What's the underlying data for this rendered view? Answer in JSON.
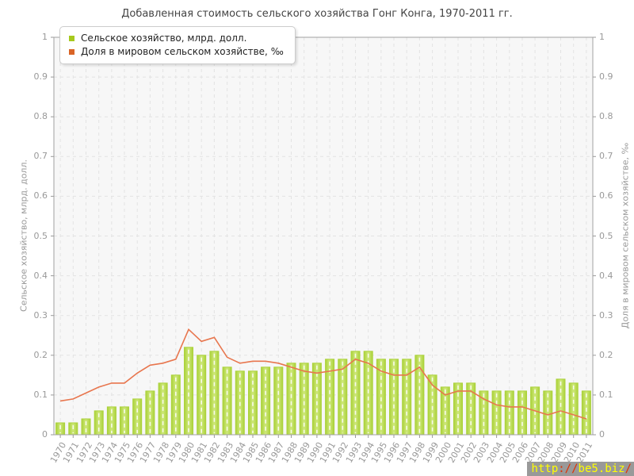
{
  "title": "Добавленная стоимость сельского хозяйства Гонг Конга, 1970-2011 гг.",
  "legend": {
    "items": [
      {
        "label": "Сельское хозяйство, млрд. долл.",
        "color": "#a6c91d",
        "marker": "square-icon"
      },
      {
        "label": "Доля в мировом сельском хозяйстве, ‰",
        "color": "#d96426",
        "marker": "square-icon"
      }
    ]
  },
  "axes": {
    "y_left_title": "Сельское хозяйство, млрд. долл.",
    "y_right_title": "Доля в мировом сельском хозяйстве, ‰",
    "y_tick_labels": [
      "0",
      "0.1",
      "0.2",
      "0.3",
      "0.4",
      "0.5",
      "0.6",
      "0.7",
      "0.8",
      "0.9",
      "1"
    ]
  },
  "watermark": {
    "p1": "http",
    "p2": "://",
    "p3": "be5.biz",
    "p4": "/"
  },
  "colors": {
    "bar_edge": "#abd23a",
    "bar_light": "#cfe87c",
    "bar_stripe": "#ffffff",
    "line": "#e8764e",
    "grid": "#e3e3e3",
    "plot_bg": "#f7f7f7",
    "axis_border": "#a0a0a0",
    "tick": "#999999"
  },
  "chart_data": {
    "type": "bar",
    "title": "Добавленная стоимость сельского хозяйства Гонг Конга, 1970-2011 гг.",
    "xlabel": "",
    "ylabel_left": "Сельское хозяйство, млрд. долл.",
    "ylabel_right": "Доля в мировом сельском хозяйстве, ‰",
    "ylim": [
      0,
      1
    ],
    "grid": true,
    "legend_position": "top-left",
    "categories": [
      1970,
      1971,
      1972,
      1973,
      1974,
      1975,
      1976,
      1977,
      1978,
      1979,
      1980,
      1981,
      1982,
      1983,
      1984,
      1985,
      1986,
      1987,
      1988,
      1989,
      1990,
      1991,
      1992,
      1993,
      1994,
      1995,
      1996,
      1997,
      1998,
      1999,
      2000,
      2001,
      2002,
      2003,
      2004,
      2005,
      2006,
      2007,
      2008,
      2009,
      2010,
      2011
    ],
    "series": [
      {
        "name": "Сельское хозяйство, млрд. долл.",
        "type": "bar",
        "values": [
          0.03,
          0.03,
          0.04,
          0.06,
          0.07,
          0.07,
          0.09,
          0.11,
          0.13,
          0.15,
          0.22,
          0.2,
          0.21,
          0.17,
          0.16,
          0.16,
          0.17,
          0.17,
          0.18,
          0.18,
          0.18,
          0.19,
          0.19,
          0.21,
          0.21,
          0.19,
          0.19,
          0.19,
          0.2,
          0.15,
          0.12,
          0.13,
          0.13,
          0.11,
          0.11,
          0.11,
          0.11,
          0.12,
          0.11,
          0.14,
          0.13,
          0.11
        ]
      },
      {
        "name": "Доля в мировом сельском хозяйстве, ‰",
        "type": "line",
        "values": [
          0.085,
          0.09,
          0.105,
          0.12,
          0.13,
          0.13,
          0.155,
          0.175,
          0.18,
          0.19,
          0.265,
          0.235,
          0.245,
          0.195,
          0.18,
          0.185,
          0.185,
          0.18,
          0.17,
          0.16,
          0.155,
          0.16,
          0.165,
          0.19,
          0.18,
          0.16,
          0.15,
          0.15,
          0.17,
          0.125,
          0.1,
          0.11,
          0.11,
          0.09,
          0.075,
          0.07,
          0.07,
          0.06,
          0.05,
          0.06,
          0.05,
          0.04
        ]
      }
    ]
  }
}
